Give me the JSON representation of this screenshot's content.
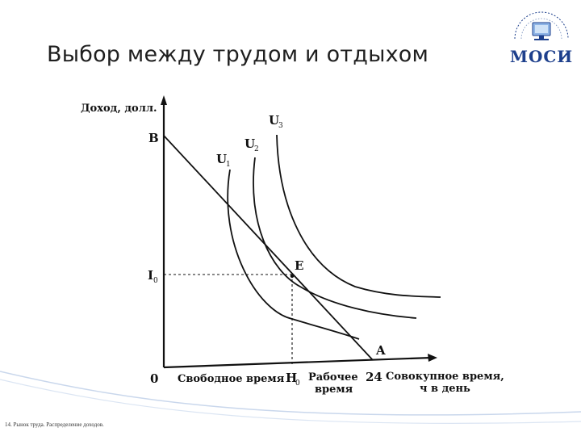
{
  "slide": {
    "title": "Выбор между трудом и отдыхом",
    "footer": "14. Рынок труда. Распределение доходов.",
    "logo_text": "МОСИ"
  },
  "diagram": {
    "y_axis_label": "Доход, долл.",
    "point_B": "B",
    "point_I0": "I",
    "point_I0_sub": "0",
    "point_E": "E",
    "point_A": "A",
    "origin": "0",
    "leisure_label": "Свободное время",
    "point_H0": "H",
    "point_H0_sub": "0",
    "work_label_1": "Рабочее",
    "work_label_2": "время",
    "x_end_value": "24",
    "x_axis_label_1": "Совокупное время,",
    "x_axis_label_2": "ч в день",
    "curve_U1": "U",
    "curve_U1_sub": "1",
    "curve_U2": "U",
    "curve_U2_sub": "2",
    "curve_U3": "U",
    "curve_U3_sub": "3"
  },
  "colors": {
    "title": "#1f1f1f",
    "logo_blue": "#1d3f8c",
    "wave": "#c9d7ec"
  }
}
